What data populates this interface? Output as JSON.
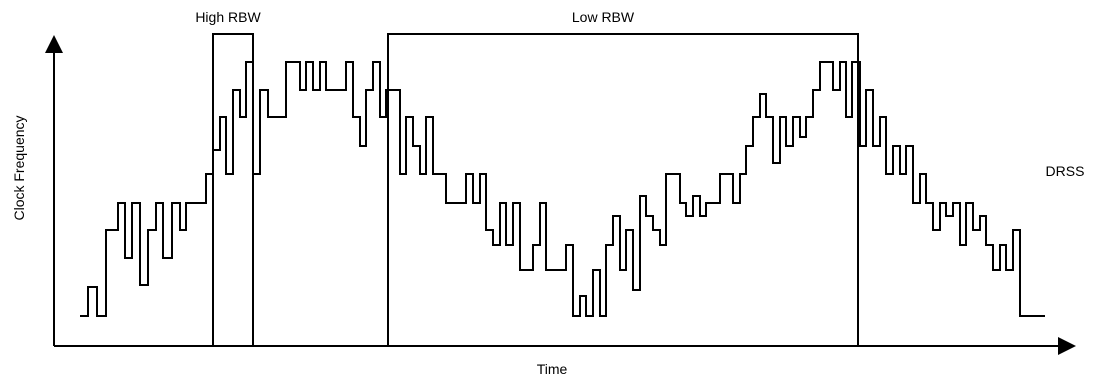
{
  "labels": {
    "high_rbw": "High RBW",
    "low_rbw": "Low RBW",
    "drss": "DRSS",
    "x_axis": "Time",
    "y_axis": "Clock Frequency"
  },
  "colors": {
    "stroke": "#000000",
    "background": "#ffffff"
  }
}
